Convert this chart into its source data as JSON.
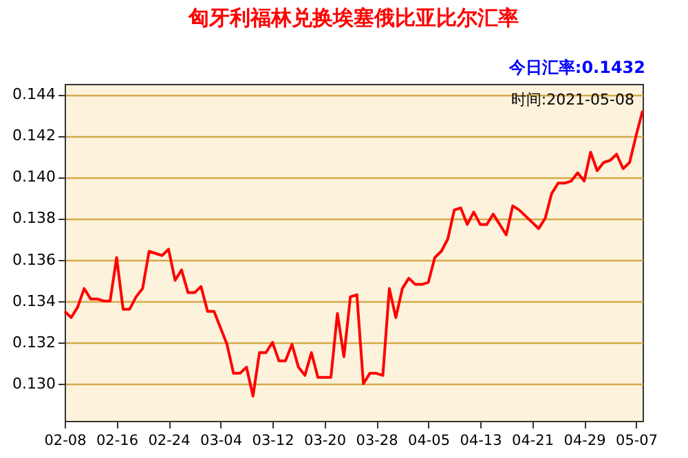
{
  "chart_data": {
    "type": "line",
    "title": "匈牙利福林兑换埃塞俄比亚比尔汇率",
    "annotations": [
      "今日汇率:0.1432",
      "时间:2021-05-08"
    ],
    "x": [
      "2021-02-08",
      "2021-02-09",
      "2021-02-10",
      "2021-02-11",
      "2021-02-12",
      "2021-02-13",
      "2021-02-14",
      "2021-02-15",
      "2021-02-16",
      "2021-02-17",
      "2021-02-18",
      "2021-02-19",
      "2021-02-20",
      "2021-02-21",
      "2021-02-22",
      "2021-02-23",
      "2021-02-24",
      "2021-02-25",
      "2021-02-26",
      "2021-02-27",
      "2021-02-28",
      "2021-03-01",
      "2021-03-02",
      "2021-03-03",
      "2021-03-04",
      "2021-03-05",
      "2021-03-06",
      "2021-03-07",
      "2021-03-08",
      "2021-03-09",
      "2021-03-10",
      "2021-03-11",
      "2021-03-12",
      "2021-03-13",
      "2021-03-14",
      "2021-03-15",
      "2021-03-16",
      "2021-03-17",
      "2021-03-18",
      "2021-03-19",
      "2021-03-20",
      "2021-03-21",
      "2021-03-22",
      "2021-03-23",
      "2021-03-24",
      "2021-03-25",
      "2021-03-26",
      "2021-03-27",
      "2021-03-28",
      "2021-03-29",
      "2021-03-30",
      "2021-03-31",
      "2021-04-01",
      "2021-04-02",
      "2021-04-03",
      "2021-04-04",
      "2021-04-05",
      "2021-04-06",
      "2021-04-07",
      "2021-04-08",
      "2021-04-09",
      "2021-04-10",
      "2021-04-11",
      "2021-04-12",
      "2021-04-13",
      "2021-04-14",
      "2021-04-15",
      "2021-04-16",
      "2021-04-17",
      "2021-04-18",
      "2021-04-19",
      "2021-04-20",
      "2021-04-21",
      "2021-04-22",
      "2021-04-23",
      "2021-04-24",
      "2021-04-25",
      "2021-04-26",
      "2021-04-27",
      "2021-04-28",
      "2021-04-29",
      "2021-04-30",
      "2021-05-01",
      "2021-05-02",
      "2021-05-03",
      "2021-05-04",
      "2021-05-05",
      "2021-05-06",
      "2021-05-07",
      "2021-05-08"
    ],
    "series": [
      {
        "color": "#ff0000",
        "values": [
          0.1335,
          0.1332,
          0.1337,
          0.1346,
          0.1341,
          0.1341,
          0.134,
          0.134,
          0.1361,
          0.1336,
          0.1336,
          0.1342,
          0.1346,
          0.1364,
          0.1363,
          0.1362,
          0.1365,
          0.135,
          0.1355,
          0.1344,
          0.1344,
          0.1347,
          0.1335,
          0.1335,
          0.1327,
          0.1319,
          0.1305,
          0.1305,
          0.1308,
          0.1294,
          0.1315,
          0.1315,
          0.132,
          0.1311,
          0.1311,
          0.1319,
          0.1308,
          0.1304,
          0.1315,
          0.1303,
          0.1303,
          0.1303,
          0.1334,
          0.1313,
          0.1342,
          0.1343,
          0.13,
          0.1305,
          0.1305,
          0.1304,
          0.1346,
          0.1332,
          0.1346,
          0.1351,
          0.1348,
          0.1348,
          0.1349,
          0.1361,
          0.1364,
          0.137,
          0.1384,
          0.1385,
          0.1377,
          0.1383,
          0.1377,
          0.1377,
          0.1382,
          0.1377,
          0.1372,
          0.1386,
          0.1384,
          0.1381,
          0.1378,
          0.1375,
          0.138,
          0.1392,
          0.1397,
          0.1397,
          0.1398,
          0.1402,
          0.1398,
          0.1412,
          0.1403,
          0.1407,
          0.1408,
          0.1411,
          0.1404,
          0.1407,
          0.142,
          0.1432
        ]
      }
    ],
    "xlim": [
      "2021-02-08",
      "2021-05-08"
    ],
    "xticks": [
      {
        "value": "2021-02-08",
        "label": "02-08"
      },
      {
        "value": "2021-02-16",
        "label": "02-16"
      },
      {
        "value": "2021-02-24",
        "label": "02-24"
      },
      {
        "value": "2021-03-04",
        "label": "03-04"
      },
      {
        "value": "2021-03-12",
        "label": "03-12"
      },
      {
        "value": "2021-03-20",
        "label": "03-20"
      },
      {
        "value": "2021-03-28",
        "label": "03-28"
      },
      {
        "value": "2021-04-05",
        "label": "04-05"
      },
      {
        "value": "2021-04-13",
        "label": "04-13"
      },
      {
        "value": "2021-04-21",
        "label": "04-21"
      },
      {
        "value": "2021-04-29",
        "label": "04-29"
      },
      {
        "value": "2021-05-07",
        "label": "05-07"
      }
    ],
    "ylim": [
      0.1282,
      0.1445
    ],
    "yticks": [
      {
        "value": 0.13,
        "label": "0.130"
      },
      {
        "value": 0.132,
        "label": "0.132"
      },
      {
        "value": 0.134,
        "label": "0.134"
      },
      {
        "value": 0.136,
        "label": "0.136"
      },
      {
        "value": 0.138,
        "label": "0.138"
      },
      {
        "value": 0.14,
        "label": "0.140"
      },
      {
        "value": 0.142,
        "label": "0.142"
      },
      {
        "value": 0.144,
        "label": "0.144"
      }
    ],
    "grid": "y",
    "marker": "none",
    "line_style": "solid"
  }
}
